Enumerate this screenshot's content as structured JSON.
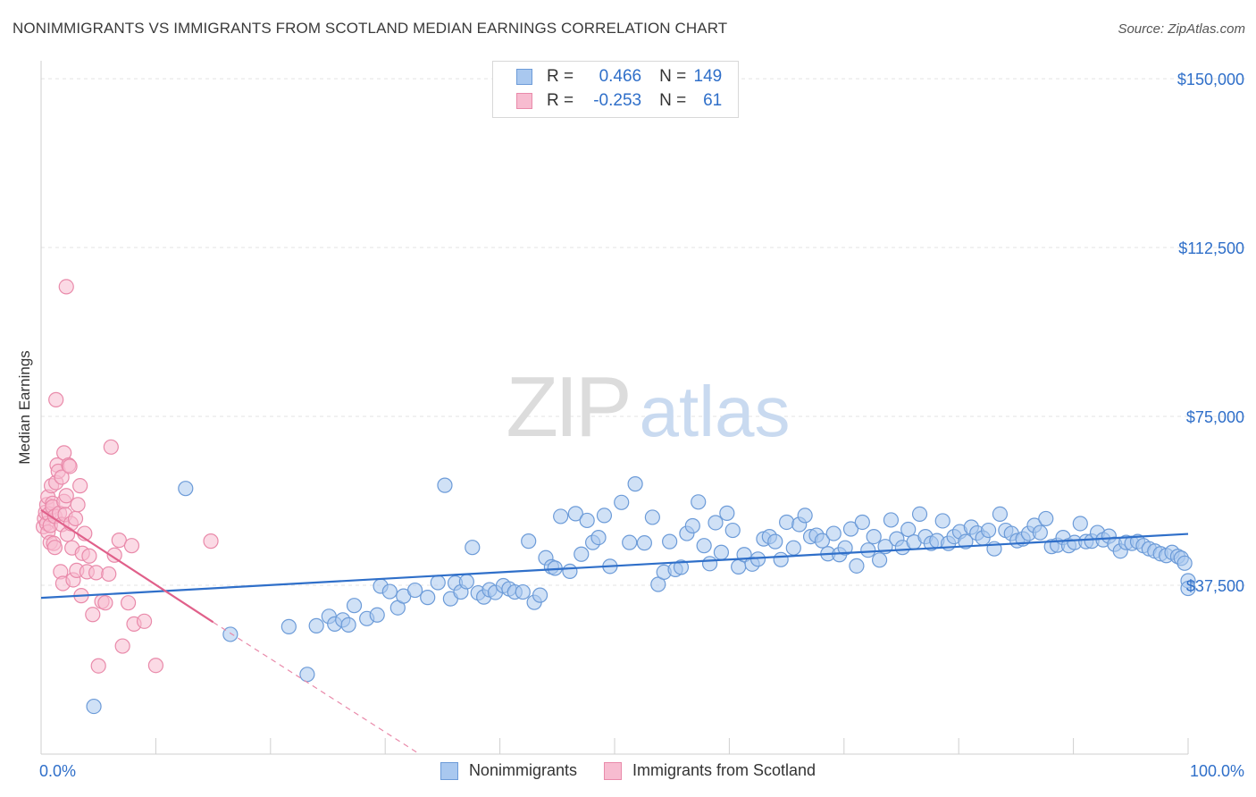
{
  "title": "NONIMMIGRANTS VS IMMIGRANTS FROM SCOTLAND MEDIAN EARNINGS CORRELATION CHART",
  "source": "Source: ZipAtlas.com",
  "watermark": {
    "zip": "ZIP",
    "atlas": "atlas"
  },
  "legend": {
    "rows": [
      {
        "r_label": "R = ",
        "r_value": "0.466",
        "n_label": "N = ",
        "n_value": "149",
        "color": "#a9c8ef",
        "border": "#6c9bd8"
      },
      {
        "r_label": "R = ",
        "r_value": "-0.253",
        "n_label": "N = ",
        "n_value": "61",
        "color": "#f7bcd0",
        "border": "#e98aaa"
      }
    ],
    "bottom": [
      "Nonimmigrants",
      "Immigrants from Scotland"
    ]
  },
  "chart_data": {
    "type": "scatter",
    "title": "NONIMMIGRANTS VS IMMIGRANTS FROM SCOTLAND MEDIAN EARNINGS CORRELATION CHART",
    "xlabel": "",
    "ylabel": "Median Earnings",
    "xlim": [
      0,
      100
    ],
    "ylim": [
      0,
      152000
    ],
    "x_tick_labels": [
      "0.0%",
      "100.0%"
    ],
    "y_ticks": [
      37500,
      75000,
      112500,
      150000
    ],
    "y_tick_labels": [
      "$37,500",
      "$75,000",
      "$112,500",
      "$150,000"
    ],
    "grid": true,
    "series": [
      {
        "name": "Nonimmigrants",
        "color": "#6c9bd8",
        "fill": "#a9c8ef",
        "trend": {
          "x": [
            0,
            100
          ],
          "y": [
            34700,
            48900
          ]
        },
        "points": [
          [
            4.6,
            10600
          ],
          [
            12.6,
            59000
          ],
          [
            16.5,
            26600
          ],
          [
            21.6,
            28300
          ],
          [
            23.2,
            17700
          ],
          [
            24.0,
            28500
          ],
          [
            25.1,
            30600
          ],
          [
            25.6,
            28900
          ],
          [
            26.3,
            29800
          ],
          [
            26.8,
            28700
          ],
          [
            27.3,
            33000
          ],
          [
            28.4,
            30100
          ],
          [
            29.3,
            30900
          ],
          [
            29.6,
            37300
          ],
          [
            30.4,
            36100
          ],
          [
            31.1,
            32500
          ],
          [
            31.6,
            35100
          ],
          [
            32.6,
            36400
          ],
          [
            33.7,
            34800
          ],
          [
            34.6,
            38100
          ],
          [
            35.2,
            59700
          ],
          [
            35.7,
            34500
          ],
          [
            36.1,
            38000
          ],
          [
            36.6,
            36000
          ],
          [
            37.1,
            38300
          ],
          [
            37.6,
            45900
          ],
          [
            38.1,
            35800
          ],
          [
            38.6,
            34900
          ],
          [
            39.1,
            36500
          ],
          [
            39.6,
            35900
          ],
          [
            40.3,
            37400
          ],
          [
            40.8,
            36700
          ],
          [
            41.3,
            36000
          ],
          [
            42.0,
            36000
          ],
          [
            42.5,
            47300
          ],
          [
            43.0,
            33700
          ],
          [
            43.5,
            35300
          ],
          [
            44.0,
            43600
          ],
          [
            44.5,
            41600
          ],
          [
            44.8,
            41300
          ],
          [
            45.3,
            52800
          ],
          [
            46.1,
            40600
          ],
          [
            46.6,
            53400
          ],
          [
            47.1,
            44400
          ],
          [
            47.6,
            51900
          ],
          [
            48.1,
            47000
          ],
          [
            48.6,
            48100
          ],
          [
            49.1,
            53000
          ],
          [
            49.6,
            41700
          ],
          [
            50.6,
            55900
          ],
          [
            51.3,
            47000
          ],
          [
            51.8,
            60000
          ],
          [
            52.6,
            46900
          ],
          [
            53.3,
            52600
          ],
          [
            53.8,
            37700
          ],
          [
            54.3,
            40400
          ],
          [
            54.8,
            47200
          ],
          [
            55.3,
            41000
          ],
          [
            55.8,
            41500
          ],
          [
            56.3,
            49000
          ],
          [
            56.8,
            50700
          ],
          [
            57.3,
            56000
          ],
          [
            57.8,
            46300
          ],
          [
            58.3,
            42300
          ],
          [
            58.8,
            51400
          ],
          [
            59.3,
            44800
          ],
          [
            59.8,
            53500
          ],
          [
            60.3,
            49700
          ],
          [
            60.8,
            41600
          ],
          [
            61.3,
            44300
          ],
          [
            62.0,
            42200
          ],
          [
            62.5,
            43300
          ],
          [
            63.0,
            47800
          ],
          [
            63.5,
            48300
          ],
          [
            64.0,
            47200
          ],
          [
            64.5,
            43200
          ],
          [
            65.0,
            51500
          ],
          [
            65.6,
            45800
          ],
          [
            66.1,
            51000
          ],
          [
            66.6,
            53000
          ],
          [
            67.1,
            48300
          ],
          [
            67.6,
            48600
          ],
          [
            68.1,
            47400
          ],
          [
            68.6,
            44500
          ],
          [
            69.1,
            49000
          ],
          [
            69.6,
            44300
          ],
          [
            70.1,
            45800
          ],
          [
            70.6,
            50000
          ],
          [
            71.1,
            41800
          ],
          [
            71.6,
            51500
          ],
          [
            72.1,
            45300
          ],
          [
            72.6,
            48300
          ],
          [
            73.1,
            43100
          ],
          [
            73.6,
            46100
          ],
          [
            74.1,
            52000
          ],
          [
            74.6,
            47800
          ],
          [
            75.1,
            45900
          ],
          [
            75.6,
            49900
          ],
          [
            76.1,
            47100
          ],
          [
            76.6,
            53300
          ],
          [
            77.1,
            48300
          ],
          [
            77.6,
            46800
          ],
          [
            78.1,
            47400
          ],
          [
            78.6,
            51800
          ],
          [
            79.1,
            46800
          ],
          [
            79.6,
            48300
          ],
          [
            80.1,
            49400
          ],
          [
            80.6,
            47200
          ],
          [
            81.1,
            50400
          ],
          [
            81.6,
            49100
          ],
          [
            82.1,
            48000
          ],
          [
            82.6,
            49700
          ],
          [
            83.1,
            45600
          ],
          [
            83.6,
            53300
          ],
          [
            84.1,
            49700
          ],
          [
            84.6,
            49000
          ],
          [
            85.1,
            47400
          ],
          [
            85.6,
            47800
          ],
          [
            86.1,
            49000
          ],
          [
            86.6,
            50800
          ],
          [
            87.1,
            49200
          ],
          [
            87.6,
            52300
          ],
          [
            88.1,
            46100
          ],
          [
            88.6,
            46400
          ],
          [
            89.1,
            48100
          ],
          [
            89.6,
            46300
          ],
          [
            90.1,
            47000
          ],
          [
            90.6,
            51200
          ],
          [
            91.1,
            47200
          ],
          [
            91.6,
            47300
          ],
          [
            92.1,
            49200
          ],
          [
            92.6,
            47600
          ],
          [
            93.1,
            48400
          ],
          [
            93.6,
            46600
          ],
          [
            94.1,
            45100
          ],
          [
            94.6,
            47000
          ],
          [
            95.1,
            46800
          ],
          [
            95.6,
            47200
          ],
          [
            96.1,
            46300
          ],
          [
            96.6,
            45600
          ],
          [
            97.1,
            45100
          ],
          [
            97.6,
            44500
          ],
          [
            98.1,
            44100
          ],
          [
            98.6,
            44800
          ],
          [
            99.1,
            43900
          ],
          [
            99.4,
            43500
          ],
          [
            99.7,
            42400
          ],
          [
            100.0,
            38500
          ],
          [
            100.0,
            36800
          ]
        ]
      },
      {
        "name": "Immigrants from Scotland",
        "color": "#e98aaa",
        "fill": "#f7bcd0",
        "trend": {
          "x": [
            0,
            15
          ],
          "y": [
            54200,
            29300
          ]
        },
        "trend_ext": {
          "x": [
            15,
            33
          ],
          "y": [
            29300,
            0
          ]
        },
        "points": [
          [
            0.2,
            50500
          ],
          [
            0.3,
            52300
          ],
          [
            0.4,
            53700
          ],
          [
            0.5,
            55400
          ],
          [
            0.5,
            51200
          ],
          [
            0.6,
            49300
          ],
          [
            0.6,
            57100
          ],
          [
            0.7,
            53300
          ],
          [
            0.8,
            50800
          ],
          [
            0.8,
            47000
          ],
          [
            0.9,
            59600
          ],
          [
            1.0,
            55700
          ],
          [
            1.0,
            54900
          ],
          [
            1.1,
            46800
          ],
          [
            1.2,
            52800
          ],
          [
            1.2,
            45900
          ],
          [
            1.3,
            78700
          ],
          [
            1.3,
            60300
          ],
          [
            1.4,
            64200
          ],
          [
            1.5,
            62800
          ],
          [
            1.6,
            53500
          ],
          [
            1.7,
            40500
          ],
          [
            1.8,
            61500
          ],
          [
            1.8,
            51000
          ],
          [
            1.9,
            37900
          ],
          [
            2.0,
            66900
          ],
          [
            2.0,
            56100
          ],
          [
            2.1,
            53200
          ],
          [
            2.2,
            57400
          ],
          [
            2.3,
            48800
          ],
          [
            2.4,
            64200
          ],
          [
            2.5,
            63900
          ],
          [
            2.6,
            51200
          ],
          [
            2.7,
            45800
          ],
          [
            2.8,
            38700
          ],
          [
            3.0,
            52300
          ],
          [
            3.1,
            40800
          ],
          [
            3.2,
            55400
          ],
          [
            3.4,
            59600
          ],
          [
            3.5,
            35200
          ],
          [
            3.6,
            44600
          ],
          [
            3.8,
            49000
          ],
          [
            4.0,
            40500
          ],
          [
            4.2,
            44000
          ],
          [
            4.5,
            31000
          ],
          [
            4.8,
            40300
          ],
          [
            5.0,
            19600
          ],
          [
            5.3,
            33900
          ],
          [
            5.6,
            33600
          ],
          [
            5.9,
            40000
          ],
          [
            6.1,
            68200
          ],
          [
            6.4,
            44200
          ],
          [
            6.8,
            47500
          ],
          [
            7.1,
            24000
          ],
          [
            7.6,
            33600
          ],
          [
            7.9,
            46300
          ],
          [
            8.1,
            28900
          ],
          [
            9.0,
            29500
          ],
          [
            10.0,
            19700
          ],
          [
            14.8,
            47300
          ],
          [
            2.2,
            103800
          ]
        ]
      }
    ]
  }
}
